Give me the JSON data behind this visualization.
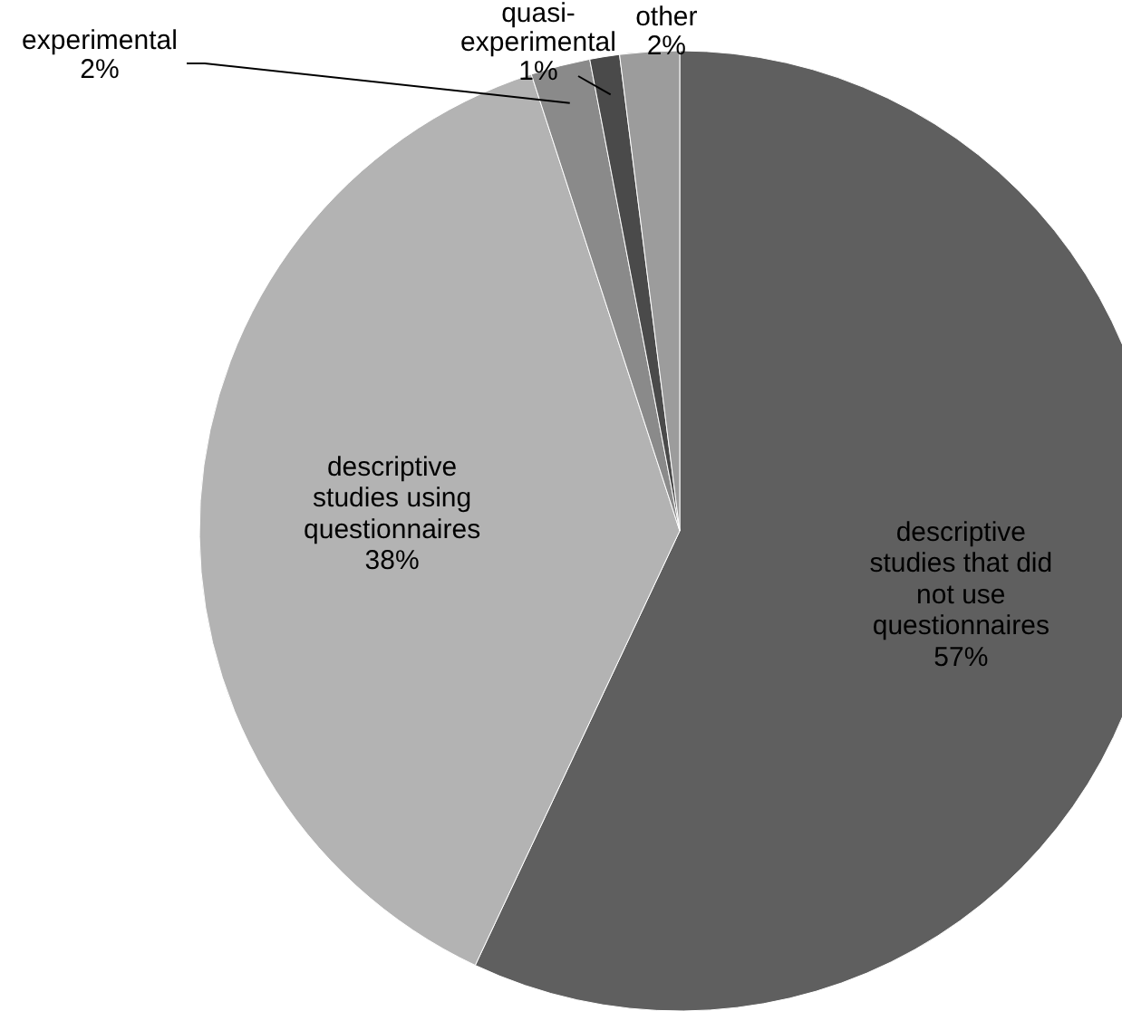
{
  "chart_data": {
    "type": "pie",
    "categories": [
      "descriptive studies that did not use questionnaires",
      "descriptive studies using questionnaires",
      "experimental",
      "quasi-experimental",
      "other"
    ],
    "values": [
      57,
      38,
      2,
      1,
      2
    ],
    "value_labels": [
      "57%",
      "38%",
      "2%",
      "1%",
      "2%"
    ],
    "colors": [
      "#5f5f5f",
      "#b3b3b3",
      "#8a8a8a",
      "#4a4a4a",
      "#9c9c9c"
    ],
    "legend": false
  }
}
